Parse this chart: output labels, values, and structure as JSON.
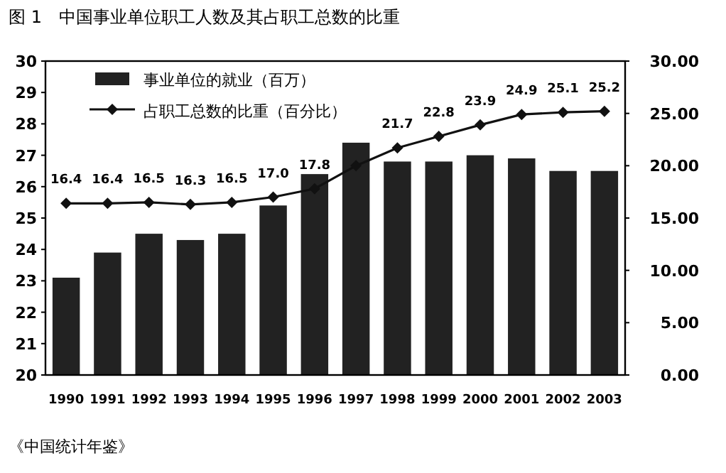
{
  "chart_data": {
    "type": "bar",
    "title": "图 1　中国事业单位职工人数及其占职工总数的比重",
    "categories": [
      "1990",
      "1991",
      "1992",
      "1993",
      "1994",
      "1995",
      "1996",
      "1997",
      "1998",
      "1999",
      "2000",
      "2001",
      "2002",
      "2003"
    ],
    "series": [
      {
        "name": "事业单位的就业（百万）",
        "color": "#222222",
        "values": [
          23.1,
          23.9,
          24.5,
          24.3,
          24.5,
          25.4,
          26.4,
          27.4,
          26.8,
          26.8,
          27.0,
          26.9,
          26.5,
          26.5
        ]
      },
      {
        "name": "占职工总数的比重（百分比）",
        "type": "line",
        "axis": "y2",
        "color": "#111111",
        "marker": "diamond",
        "values": [
          16.4,
          16.4,
          16.5,
          16.3,
          16.5,
          17.0,
          17.8,
          20.0,
          21.7,
          22.8,
          23.9,
          24.9,
          25.1,
          25.2
        ],
        "value_labels": [
          "16.4",
          "16.4",
          "16.5",
          "16.3",
          "16.5",
          "17.0",
          "17.8",
          null,
          "21.7",
          "22.8",
          "23.9",
          "24.9",
          "25.1",
          "25.2"
        ]
      }
    ],
    "ylim": [
      20,
      30
    ],
    "yticks": [
      20,
      21,
      22,
      23,
      24,
      25,
      26,
      27,
      28,
      29,
      30
    ],
    "y2lim": [
      0,
      30
    ],
    "y2ticks": [
      {
        "value": 0,
        "label": "0.00"
      },
      {
        "value": 5,
        "label": "5.00"
      },
      {
        "value": 10,
        "label": "10.00"
      },
      {
        "value": 15,
        "label": "15.00"
      },
      {
        "value": 20,
        "label": "20.00"
      },
      {
        "value": 25,
        "label": "25.00"
      },
      {
        "value": 30,
        "label": "30.00"
      }
    ],
    "legend": "top left",
    "grid": false,
    "annotations": [
      "《中国统计年鉴》"
    ]
  }
}
